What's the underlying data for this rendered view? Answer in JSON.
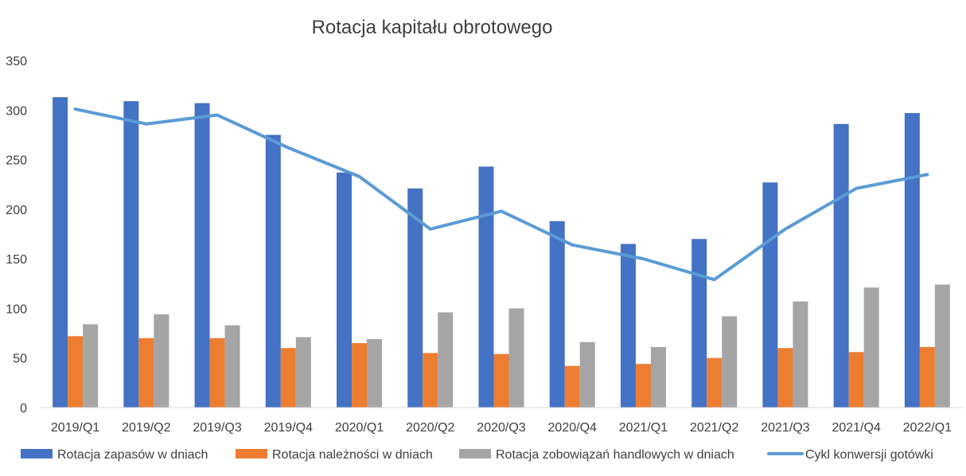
{
  "chart_data": {
    "type": "bar",
    "title": "Rotacja kapitału obrotowego",
    "xlabel": "",
    "ylabel": "",
    "ylim": [
      0,
      350
    ],
    "yticks": [
      0,
      50,
      100,
      150,
      200,
      250,
      300,
      350
    ],
    "grid": false,
    "legend_position": "bottom",
    "categories": [
      "2019/Q1",
      "2019/Q2",
      "2019/Q3",
      "2019/Q4",
      "2020/Q1",
      "2020/Q2",
      "2020/Q3",
      "2020/Q4",
      "2021/Q1",
      "2021/Q2",
      "2021/Q3",
      "2021/Q4",
      "2022/Q1"
    ],
    "series": [
      {
        "name": "Rotacja zapasów w dniach",
        "type": "bar",
        "color": "#4472C4",
        "values": [
          313,
          309,
          307,
          275,
          237,
          221,
          243,
          188,
          165,
          170,
          227,
          286,
          297
        ]
      },
      {
        "name": "Rotacja należności w dniach",
        "type": "bar",
        "color": "#ED7D31",
        "values": [
          72,
          70,
          70,
          60,
          65,
          55,
          54,
          42,
          44,
          50,
          60,
          56,
          61
        ]
      },
      {
        "name": "Rotacja zobowiązań handlowych w dniach",
        "type": "bar",
        "color": "#A5A5A5",
        "values": [
          84,
          94,
          83,
          71,
          69,
          96,
          100,
          66,
          61,
          92,
          107,
          121,
          124
        ]
      },
      {
        "name": "Cykl konwersji gotówki",
        "type": "line",
        "color": "#5B9BD5",
        "values": [
          301,
          286,
          295,
          262,
          233,
          180,
          198,
          164,
          150,
          129,
          180,
          221,
          235
        ]
      }
    ]
  }
}
